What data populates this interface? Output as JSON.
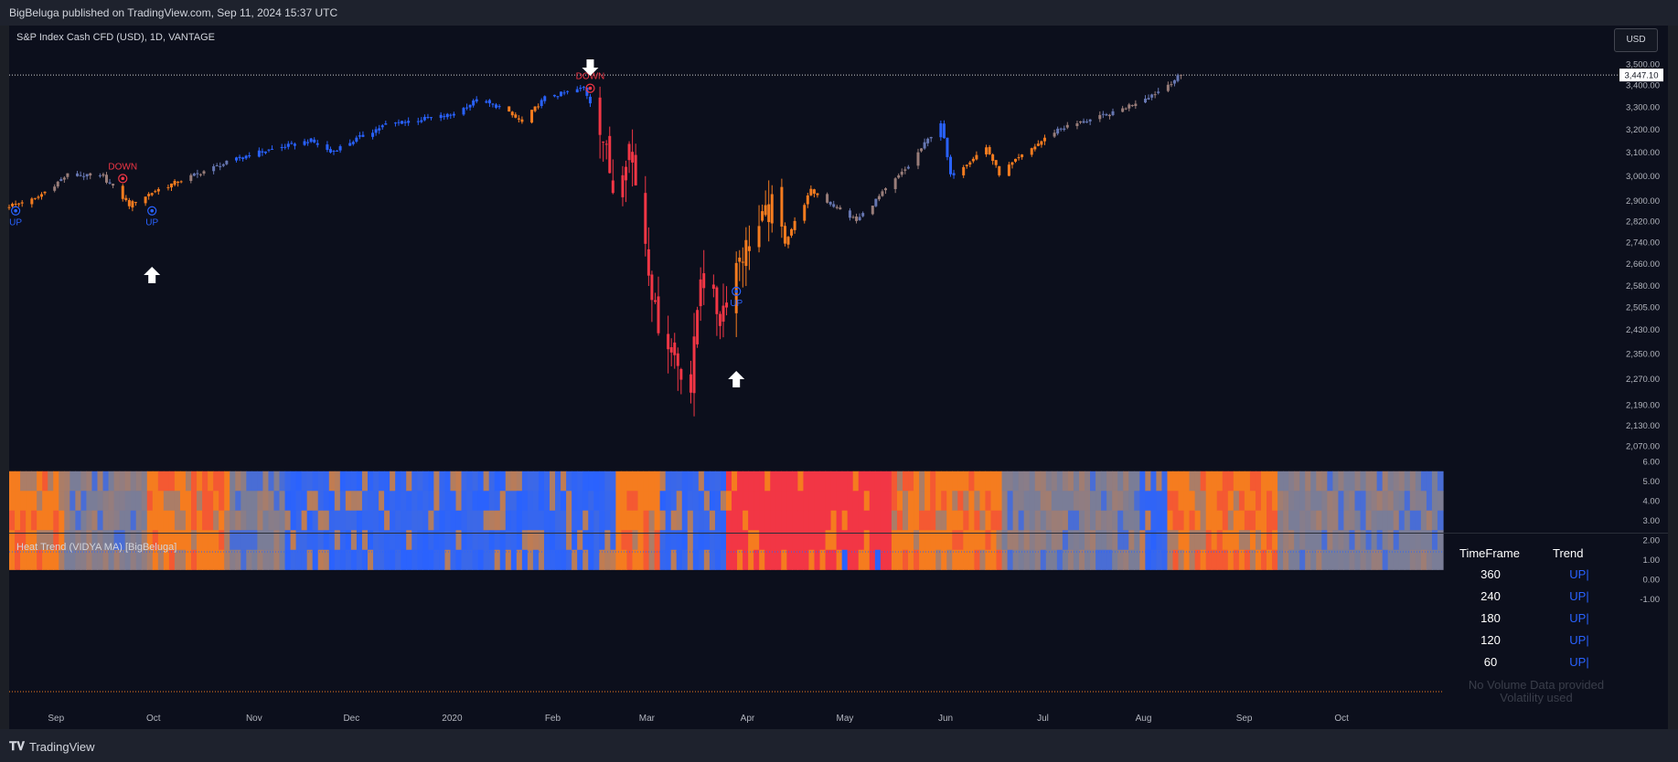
{
  "header": {
    "publish_line": "BigBeluga published on TradingView.com, Sep 11, 2024 15:37 UTC"
  },
  "chart_header": {
    "symbol_title": "S&P Index Cash CFD (USD), 1D, VANTAGE",
    "currency_button": "USD"
  },
  "footer": {
    "brand": "TradingView"
  },
  "colors": {
    "background": "#0c0f1c",
    "up_blue": "#2962ff",
    "down_red": "#f23645",
    "orange": "#f57c1f",
    "neutral": "#7a7d97",
    "white": "#ffffff"
  },
  "chart_data": [
    {
      "type": "candlestick",
      "title": "S&P Index Cash CFD (USD), 1D, VANTAGE",
      "price_axis_ticks": [
        "3,500.00",
        "3,400.00",
        "3,300.00",
        "3,200.00",
        "3,100.00",
        "3,000.00",
        "2,900.00",
        "2,820.00",
        "2,740.00",
        "2,660.00",
        "2,580.00",
        "2,505.00",
        "2,430.00",
        "2,350.00",
        "2,270.00",
        "2,190.00",
        "2,130.00",
        "2,070.00"
      ],
      "time_axis_labels": [
        "Sep",
        "Oct",
        "Nov",
        "Dec",
        "2020",
        "Feb",
        "Mar",
        "Apr",
        "May",
        "Jun",
        "Jul",
        "Aug",
        "Sep",
        "Oct"
      ],
      "current_price": "3,447.10",
      "close_path": [
        [
          "Aug 26 2019",
          2880
        ],
        [
          "Sep 3 2019",
          2906
        ],
        [
          "Sep 13 2019",
          3005
        ],
        [
          "Sep 24 2019",
          2995
        ],
        [
          "Oct 2 2019",
          2884
        ],
        [
          "Oct 10 2019",
          2940
        ],
        [
          "Oct 25 2019",
          3020
        ],
        [
          "Nov 8 2019",
          3090
        ],
        [
          "Nov 27 2019",
          3150
        ],
        [
          "Dec 3 2019",
          3100
        ],
        [
          "Dec 20 2019",
          3220
        ],
        [
          "Jan 10 2020",
          3265
        ],
        [
          "Jan 17 2020",
          3330
        ],
        [
          "Jan 24 2020",
          3300
        ],
        [
          "Jan 31 2020",
          3230
        ],
        [
          "Feb 7 2020",
          3340
        ],
        [
          "Feb 19 2020",
          3386
        ],
        [
          "Feb 24 2020",
          3225
        ],
        [
          "Feb 28 2020",
          2955
        ],
        [
          "Mar 4 2020",
          3130
        ],
        [
          "Mar 9 2020",
          2750
        ],
        [
          "Mar 12 2020",
          2480
        ],
        [
          "Mar 16 2020",
          2390
        ],
        [
          "Mar 23 2020",
          2237
        ],
        [
          "Mar 26 2020",
          2630
        ],
        [
          "Apr 1 2020",
          2470
        ],
        [
          "Apr 6 2020",
          2660
        ],
        [
          "Apr 17 2020",
          2875
        ],
        [
          "Apr 21 2020",
          2740
        ],
        [
          "Apr 29 2020",
          2940
        ],
        [
          "May 13 2020",
          2820
        ],
        [
          "May 29 2020",
          3040
        ],
        [
          "Jun 8 2020",
          3230
        ],
        [
          "Jun 11 2020",
          3000
        ],
        [
          "Jun 22 2020",
          3120
        ],
        [
          "Jun 26 2020",
          3010
        ],
        [
          "Jul 14 2020",
          3200
        ],
        [
          "Jul 31 2020",
          3270
        ],
        [
          "Aug 14 2020",
          3370
        ],
        [
          "Aug 21 2020",
          3447
        ]
      ],
      "signals": [
        {
          "label": "UP",
          "date": "Aug 28 2019",
          "price": 2860,
          "kind": "up"
        },
        {
          "label": "DOWN",
          "date": "Sep 30 2019",
          "price": 2990,
          "kind": "down"
        },
        {
          "label": "UP",
          "date": "Oct 9 2019",
          "price": 2860,
          "kind": "up"
        },
        {
          "label": "DOWN",
          "date": "Feb 21 2020",
          "price": 3385,
          "kind": "down"
        },
        {
          "label": "UP",
          "date": "Apr 6 2020",
          "price": 2560,
          "kind": "up"
        }
      ]
    },
    {
      "type": "heatmap",
      "title": "Heat Trend (VIDYA MA) [BigBeluga]",
      "rows": [
        "360",
        "240",
        "180",
        "120",
        "60"
      ],
      "axis_ticks": [
        "6.00",
        "5.00",
        "4.00",
        "3.00",
        "2.00",
        "1.00",
        "0.00",
        "-1.00"
      ],
      "trend_regimes": [
        {
          "from": "Aug 26 2019",
          "to": "Sep 6 2019",
          "state": "orange"
        },
        {
          "from": "Sep 9 2019",
          "to": "Sep 27 2019",
          "state": "neutral"
        },
        {
          "from": "Sep 30 2019",
          "to": "Oct 18 2019",
          "state": "orange"
        },
        {
          "from": "Oct 21 2019",
          "to": "Oct 31 2019",
          "state": "neutral"
        },
        {
          "from": "Nov 1 2019",
          "to": "Dec 3 2019",
          "state": "up"
        },
        {
          "from": "Dec 4 2019",
          "to": "Dec 31 2019",
          "state": "up"
        },
        {
          "from": "Jan 2 2020",
          "to": "Jan 24 2020",
          "state": "up"
        },
        {
          "from": "Jan 27 2020",
          "to": "Feb 3 2020",
          "state": "orange"
        },
        {
          "from": "Feb 4 2020",
          "to": "Feb 21 2020",
          "state": "up"
        },
        {
          "from": "Feb 24 2020",
          "to": "Apr 3 2020",
          "state": "down"
        },
        {
          "from": "Apr 6 2020",
          "to": "Apr 30 2020",
          "state": "orange"
        },
        {
          "from": "May 1 2020",
          "to": "Jun 5 2020",
          "state": "neutral"
        },
        {
          "from": "Jun 8 2020",
          "to": "Jun 12 2020",
          "state": "up"
        },
        {
          "from": "Jun 15 2020",
          "to": "Jul 10 2020",
          "state": "orange"
        },
        {
          "from": "Jul 13 2020",
          "to": "Aug 21 2020",
          "state": "neutral"
        }
      ]
    }
  ],
  "trend_table": {
    "headers": [
      "TimeFrame",
      "Trend"
    ],
    "rows": [
      {
        "timeframe": "360",
        "trend": "UP|"
      },
      {
        "timeframe": "240",
        "trend": "UP|"
      },
      {
        "timeframe": "180",
        "trend": "UP|"
      },
      {
        "timeframe": "120",
        "trend": "UP|"
      },
      {
        "timeframe": "60",
        "trend": "UP|"
      }
    ]
  },
  "volume_notice": [
    "No Volume Data provided",
    "Volatility used"
  ]
}
